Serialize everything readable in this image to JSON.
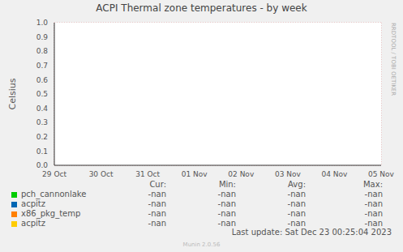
{
  "chart_data": {
    "type": "line",
    "title": "ACPI Thermal zone temperatures - by week",
    "y_label": "Celsius",
    "categories": [
      "29 Oct",
      "30 Oct",
      "31 Oct",
      "01 Nov",
      "02 Nov",
      "03 Nov",
      "04 Nov",
      "05 Nov"
    ],
    "series": [
      {
        "name": "pch_cannonlake",
        "color": "#00cc00",
        "values": [
          null,
          null,
          null,
          null,
          null,
          null,
          null,
          null
        ],
        "stats": [
          "-nan",
          "-nan",
          "-nan",
          "-nan"
        ]
      },
      {
        "name": "acpitz",
        "color": "#0066b3",
        "values": [
          null,
          null,
          null,
          null,
          null,
          null,
          null,
          null
        ],
        "stats": [
          "-nan",
          "-nan",
          "-nan",
          "-nan"
        ]
      },
      {
        "name": "x86_pkg_temp",
        "color": "#ff8000",
        "values": [
          null,
          null,
          null,
          null,
          null,
          null,
          null,
          null
        ],
        "stats": [
          "-nan",
          "-nan",
          "-nan",
          "-nan"
        ]
      },
      {
        "name": "acpitz",
        "color": "#ffcc00",
        "values": [
          null,
          null,
          null,
          null,
          null,
          null,
          null,
          null
        ],
        "stats": [
          "-nan",
          "-nan",
          "-nan",
          "-nan"
        ]
      }
    ],
    "legend_columns": [
      "Cur:",
      "Min:",
      "Avg:",
      "Max:"
    ],
    "ylim": [
      0,
      1
    ],
    "yticks": [
      {
        "value": 0,
        "label": "0.0"
      },
      0.1,
      0.2,
      0.3,
      0.4,
      0.5,
      0.6,
      0.7,
      0.8,
      0.9,
      {
        "value": 1,
        "label": "1.0"
      }
    ],
    "grid": true,
    "last_update": "Last update: Sat Dec 23 00:25:04 2023",
    "footer": "Munin 2.0.56",
    "side_text": "RRDTOOL / TOBI OETIKER"
  }
}
